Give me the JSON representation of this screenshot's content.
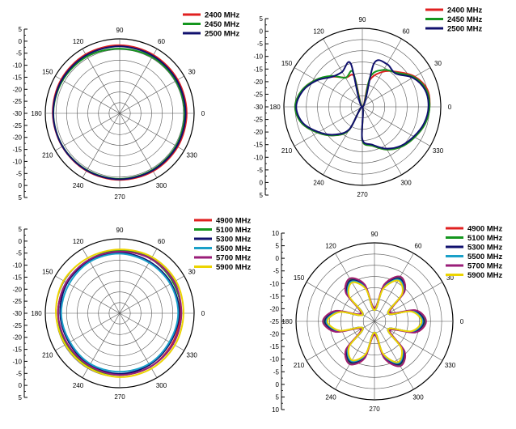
{
  "chart_data": [
    {
      "type": "polar",
      "id": "p1",
      "radial_tick_labels": [
        "5",
        "0",
        "-5",
        "-10",
        "-15",
        "-20",
        "-25",
        "-30",
        "-25",
        "-20",
        "-15",
        "-10",
        "-5",
        "0",
        "5"
      ],
      "radial_range": [
        -30,
        5
      ],
      "angle_ticks": [
        0,
        30,
        60,
        90,
        120,
        150,
        180,
        210,
        240,
        270,
        300,
        330
      ],
      "angle_tick_labels": [
        "0",
        "30",
        "60",
        "90",
        "120",
        "150",
        "180",
        "210",
        "240",
        "270",
        "300",
        "330"
      ],
      "grid": true,
      "legend_position": "top-right",
      "series": [
        {
          "name": "2400 MHz",
          "color": "#e02020",
          "gain_db": [
            1.5,
            1.5,
            1.7,
            2.0,
            2.0,
            1.8,
            1.5,
            1.2,
            1.2,
            1.3,
            1.4,
            1.5,
            1.5
          ]
        },
        {
          "name": "2450 MHz",
          "color": "#14961e",
          "gain_db": [
            0.5,
            0.5,
            0.5,
            0.4,
            0.8,
            1.0,
            1.2,
            1.0,
            0.8,
            0.8,
            0.7,
            0.6,
            0.5
          ]
        },
        {
          "name": "2500 MHz",
          "color": "#10106e",
          "gain_db": [
            1.0,
            1.0,
            1.2,
            1.5,
            1.5,
            1.4,
            1.3,
            1.1,
            1.0,
            1.0,
            1.0,
            1.0,
            1.0
          ]
        }
      ]
    },
    {
      "type": "polar",
      "id": "p2",
      "radial_tick_labels": [
        "5",
        "0",
        "-5",
        "-10",
        "-15",
        "-20",
        "-25",
        "-30",
        "-25",
        "-20",
        "-15",
        "-10",
        "-5",
        "0",
        "5"
      ],
      "radial_range": [
        -30,
        5
      ],
      "angle_ticks": [
        0,
        30,
        60,
        90,
        120,
        150,
        180,
        210,
        240,
        270,
        300,
        330
      ],
      "angle_tick_labels": [
        "0",
        "30",
        "60",
        "90",
        "120",
        "150",
        "180",
        "210",
        "240",
        "270",
        "300",
        "330"
      ],
      "grid": true,
      "legend_position": "top-right",
      "series": [
        {
          "name": "2400 MHz",
          "color": "#e02020",
          "gain_db": [
            0.0,
            0.0,
            -3.0,
            -8.0,
            -12.0,
            -18.0,
            -30.0,
            -16.0,
            -15.0,
            -11.0,
            -6.0,
            -2.0,
            0.0,
            -2.0,
            -7.0,
            -12.0,
            -18.0,
            -30.0,
            -15.0,
            -12.0,
            -8.0,
            -5.0,
            -3.0,
            -1.0,
            0.0
          ]
        },
        {
          "name": "2450 MHz",
          "color": "#14961e",
          "gain_db": [
            0.0,
            -0.5,
            -3.5,
            -8.5,
            -11.0,
            -16.0,
            -30.0,
            -14.0,
            -15.0,
            -10.5,
            -6.0,
            -2.0,
            0.0,
            -2.0,
            -7.0,
            -12.0,
            -18.0,
            -30.0,
            -15.0,
            -12.0,
            -8.0,
            -5.0,
            -3.0,
            -1.0,
            0.0
          ]
        },
        {
          "name": "2500 MHz",
          "color": "#10106e",
          "gain_db": [
            -0.5,
            -1.0,
            -4.0,
            -9.0,
            -8.0,
            -10.0,
            -30.0,
            -10.0,
            -12.0,
            -11.0,
            -6.5,
            -2.5,
            -0.5,
            -2.5,
            -7.5,
            -12.5,
            -18.5,
            -30.0,
            -15.5,
            -12.5,
            -8.5,
            -5.5,
            -3.5,
            -1.5,
            -0.5
          ]
        }
      ]
    },
    {
      "type": "polar",
      "id": "p3",
      "radial_tick_labels": [
        "5",
        "0",
        "-5",
        "-10",
        "-15",
        "-20",
        "-25",
        "-30",
        "-25",
        "-20",
        "-15",
        "-10",
        "-5",
        "0",
        "5"
      ],
      "radial_range": [
        -30,
        5
      ],
      "angle_ticks": [
        0,
        30,
        60,
        90,
        120,
        150,
        180,
        210,
        240,
        270,
        300,
        330
      ],
      "angle_tick_labels": [
        "0",
        "30",
        "60",
        "90",
        "120",
        "150",
        "180",
        "210",
        "240",
        "270",
        "300",
        "330"
      ],
      "grid": true,
      "legend_position": "top-right",
      "series": [
        {
          "name": "4900 MHz",
          "color": "#e02020",
          "gain_db": [
            -1.5,
            -0.5,
            -0.5,
            -1.0,
            -1.5,
            -1.0,
            -1.0,
            -1.5,
            -1.5,
            -1.0,
            -1.0,
            -1.5,
            -1.5
          ]
        },
        {
          "name": "5100 MHz",
          "color": "#14961e",
          "gain_db": [
            -1.0,
            -1.0,
            -0.5,
            -0.5,
            -1.0,
            -1.0,
            -1.0,
            -1.0,
            -1.0,
            -1.0,
            -1.0,
            -1.0,
            -1.0
          ]
        },
        {
          "name": "5300 MHz",
          "color": "#10106e",
          "gain_db": [
            -2.0,
            -2.0,
            -2.0,
            -1.5,
            -1.5,
            -1.5,
            -2.0,
            -2.5,
            -2.0,
            -1.5,
            -2.0,
            -2.5,
            -2.0
          ]
        },
        {
          "name": "5500 MHz",
          "color": "#1aa0c8",
          "gain_db": [
            -2.5,
            -2.5,
            -2.5,
            -2.0,
            -2.0,
            -2.5,
            -2.5,
            -3.0,
            -2.5,
            -2.5,
            -2.5,
            -3.0,
            -2.5
          ]
        },
        {
          "name": "5700 MHz",
          "color": "#9a1d78",
          "gain_db": [
            -1.0,
            -0.5,
            -0.5,
            -1.0,
            -1.0,
            -1.0,
            -1.0,
            -1.5,
            -1.5,
            -1.0,
            -1.0,
            -1.0,
            -1.0
          ]
        },
        {
          "name": "5900 MHz",
          "color": "#ecd400",
          "gain_db": [
            0.0,
            0.5,
            0.5,
            0.0,
            0.0,
            0.5,
            0.0,
            -0.5,
            -0.5,
            0.0,
            0.0,
            0.0,
            0.0
          ]
        }
      ]
    },
    {
      "type": "polar",
      "id": "p4",
      "radial_tick_labels": [
        "10",
        "5",
        "0",
        "-5",
        "-10",
        "-15",
        "-20",
        "-25",
        "-20",
        "-15",
        "-10",
        "-5",
        "0",
        "5",
        "10"
      ],
      "radial_range": [
        -25,
        10
      ],
      "angle_ticks": [
        0,
        30,
        60,
        90,
        120,
        150,
        180,
        210,
        240,
        270,
        300,
        330
      ],
      "angle_tick_labels": [
        "0",
        "30",
        "60",
        "90",
        "120",
        "150",
        "180",
        "210",
        "240",
        "270",
        "300",
        "330"
      ],
      "grid": true,
      "legend_position": "top-right",
      "series": [
        {
          "name": "4900 MHz",
          "color": "#e02020",
          "gain_db": [
            -2,
            -6,
            -18,
            -6,
            -2,
            -8,
            -20,
            -8,
            -3,
            -7,
            -19,
            -7,
            -2,
            -7,
            -19,
            -7,
            -3,
            -8,
            -20,
            -8,
            -2,
            -6,
            -18,
            -6,
            -2
          ]
        },
        {
          "name": "5100 MHz",
          "color": "#14961e",
          "gain_db": [
            -2.5,
            -6.5,
            -18,
            -6,
            -2.5,
            -8.5,
            -20,
            -8.5,
            -3.5,
            -7.5,
            -19,
            -7.5,
            -2.5,
            -7.5,
            -19,
            -7.5,
            -3.5,
            -8.5,
            -20,
            -8.5,
            -2.5,
            -6.5,
            -18,
            -6.5,
            -2.5
          ]
        },
        {
          "name": "5300 MHz",
          "color": "#10106e",
          "gain_db": [
            -3,
            -7,
            -18,
            -6.5,
            -3,
            -9,
            -20,
            -9,
            -4,
            -8,
            -19,
            -8,
            -3,
            -8,
            -19,
            -8,
            -4,
            -9,
            -20,
            -9,
            -3,
            -7,
            -18,
            -7,
            -3
          ]
        },
        {
          "name": "5500 MHz",
          "color": "#1aa0c8",
          "gain_db": [
            -3.5,
            -7.5,
            -18,
            -7,
            -3.5,
            -9.5,
            -20,
            -9.5,
            -4.5,
            -8.5,
            -19,
            -8.5,
            -3.5,
            -8.5,
            -19,
            -8.5,
            -4.5,
            -9.5,
            -20,
            -9.5,
            -3.5,
            -7.5,
            -18,
            -7.5,
            -3.5
          ]
        },
        {
          "name": "5700 MHz",
          "color": "#9a1d78",
          "gain_db": [
            -2,
            -6,
            -17,
            -6,
            -2,
            -8,
            -19,
            -8,
            -3,
            -7,
            -18,
            -7,
            -2,
            -7,
            -18,
            -7,
            -3,
            -8,
            -19,
            -8,
            -2,
            -6,
            -17,
            -6,
            -2
          ]
        },
        {
          "name": "5900 MHz",
          "color": "#ecd400",
          "gain_db": [
            -4,
            -8,
            -18,
            -7.5,
            -4,
            -10,
            -20,
            -10,
            -5,
            -9,
            -19,
            -9,
            -4,
            -9,
            -19,
            -9,
            -5,
            -10,
            -20,
            -10,
            -4,
            -8,
            -18,
            -8,
            -4
          ]
        }
      ]
    }
  ]
}
